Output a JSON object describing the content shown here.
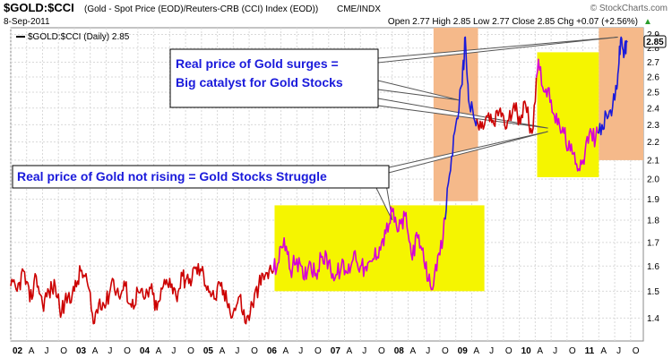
{
  "header": {
    "symbol": "$GOLD:$CCI",
    "description": "(Gold - Spot Price (EOD)/Reuters-CRB (CCI) Index (EOD))",
    "exchange": "CME/INDX",
    "brand": "© StockCharts.com",
    "date": "8-Sep-2011",
    "quote": "Open 2.77  High 2.85  Low 2.77  Close 2.85  Chg +0.07 (+2.56%)",
    "quote_arrow": "▲"
  },
  "legend": {
    "label": "$GOLD:$CCI (Daily) 2.85"
  },
  "annotations": {
    "top_box_line1": "Real price of Gold surges =",
    "top_box_line2": "Big catalyst for Gold Stocks",
    "bottom_box": "Real price of Gold not rising = Gold Stocks Struggle"
  },
  "last_value_label": "2.85",
  "colors": {
    "price_line": "#cc0000",
    "highlight_line": "#d600d6",
    "up_segment": "#1a1adb",
    "yellow_zone": "#f5f500",
    "orange_zone": "#f5b98a",
    "annotation_text": "#1a1adb",
    "grid": "#d9d9d9"
  },
  "chart_data": {
    "type": "line",
    "title": "$GOLD:$CCI",
    "series_name": "$GOLD:$CCI (Daily)",
    "ylim": [
      1.32,
      2.95
    ],
    "y_ticks": [
      "1.4",
      "1.5",
      "1.6",
      "1.7",
      "1.8",
      "1.9",
      "2.0",
      "2.1",
      "2.2",
      "2.3",
      "2.4",
      "2.5",
      "2.6",
      "2.7",
      "2.8",
      "2.9"
    ],
    "x_ticks": [
      "02",
      "A",
      "J",
      "O",
      "03",
      "A",
      "J",
      "O",
      "04",
      "A",
      "J",
      "O",
      "05",
      "A",
      "J",
      "O",
      "06",
      "A",
      "J",
      "O",
      "07",
      "A",
      "J",
      "O",
      "08",
      "A",
      "J",
      "O",
      "09",
      "A",
      "J",
      "O",
      "10",
      "A",
      "J",
      "O",
      "11",
      "A",
      "J",
      "O"
    ],
    "x_range": [
      2002.0,
      2011.95
    ],
    "grid": true,
    "log_scale": true,
    "points": [
      [
        2002.0,
        1.52
      ],
      [
        2002.1,
        1.5
      ],
      [
        2002.2,
        1.58
      ],
      [
        2002.3,
        1.46
      ],
      [
        2002.4,
        1.56
      ],
      [
        2002.5,
        1.45
      ],
      [
        2002.6,
        1.5
      ],
      [
        2002.7,
        1.52
      ],
      [
        2002.8,
        1.42
      ],
      [
        2002.9,
        1.48
      ],
      [
        2003.0,
        1.5
      ],
      [
        2003.1,
        1.58
      ],
      [
        2003.2,
        1.54
      ],
      [
        2003.3,
        1.38
      ],
      [
        2003.4,
        1.47
      ],
      [
        2003.5,
        1.45
      ],
      [
        2003.6,
        1.55
      ],
      [
        2003.7,
        1.48
      ],
      [
        2003.8,
        1.52
      ],
      [
        2003.9,
        1.44
      ],
      [
        2004.0,
        1.5
      ],
      [
        2004.1,
        1.47
      ],
      [
        2004.2,
        1.51
      ],
      [
        2004.3,
        1.43
      ],
      [
        2004.4,
        1.52
      ],
      [
        2004.5,
        1.55
      ],
      [
        2004.6,
        1.48
      ],
      [
        2004.7,
        1.56
      ],
      [
        2004.8,
        1.53
      ],
      [
        2004.9,
        1.59
      ],
      [
        2005.0,
        1.58
      ],
      [
        2005.1,
        1.52
      ],
      [
        2005.2,
        1.47
      ],
      [
        2005.3,
        1.52
      ],
      [
        2005.4,
        1.46
      ],
      [
        2005.5,
        1.42
      ],
      [
        2005.6,
        1.48
      ],
      [
        2005.7,
        1.38
      ],
      [
        2005.8,
        1.45
      ],
      [
        2005.9,
        1.52
      ],
      [
        2006.0,
        1.56
      ],
      [
        2006.1,
        1.58
      ],
      [
        2006.2,
        1.61
      ],
      [
        2006.3,
        1.72
      ],
      [
        2006.4,
        1.58
      ],
      [
        2006.5,
        1.63
      ],
      [
        2006.6,
        1.55
      ],
      [
        2006.7,
        1.62
      ],
      [
        2006.8,
        1.57
      ],
      [
        2006.9,
        1.64
      ],
      [
        2007.0,
        1.62
      ],
      [
        2007.1,
        1.55
      ],
      [
        2007.2,
        1.6
      ],
      [
        2007.3,
        1.57
      ],
      [
        2007.4,
        1.66
      ],
      [
        2007.5,
        1.6
      ],
      [
        2007.6,
        1.58
      ],
      [
        2007.7,
        1.63
      ],
      [
        2007.8,
        1.68
      ],
      [
        2007.9,
        1.74
      ],
      [
        2008.0,
        1.84
      ],
      [
        2008.1,
        1.75
      ],
      [
        2008.2,
        1.82
      ],
      [
        2008.3,
        1.65
      ],
      [
        2008.4,
        1.72
      ],
      [
        2008.5,
        1.62
      ],
      [
        2008.6,
        1.52
      ],
      [
        2008.7,
        1.58
      ],
      [
        2008.8,
        1.72
      ],
      [
        2008.9,
        2.02
      ],
      [
        2009.0,
        2.3
      ],
      [
        2009.1,
        2.55
      ],
      [
        2009.15,
        2.88
      ],
      [
        2009.2,
        2.45
      ],
      [
        2009.3,
        2.32
      ],
      [
        2009.4,
        2.28
      ],
      [
        2009.5,
        2.35
      ],
      [
        2009.6,
        2.3
      ],
      [
        2009.7,
        2.4
      ],
      [
        2009.8,
        2.28
      ],
      [
        2009.9,
        2.4
      ],
      [
        2010.0,
        2.35
      ],
      [
        2010.1,
        2.42
      ],
      [
        2010.2,
        2.25
      ],
      [
        2010.3,
        2.72
      ],
      [
        2010.4,
        2.5
      ],
      [
        2010.5,
        2.45
      ],
      [
        2010.6,
        2.3
      ],
      [
        2010.7,
        2.25
      ],
      [
        2010.8,
        2.15
      ],
      [
        2010.9,
        2.08
      ],
      [
        2011.0,
        2.1
      ],
      [
        2011.1,
        2.25
      ],
      [
        2011.2,
        2.22
      ],
      [
        2011.3,
        2.3
      ],
      [
        2011.4,
        2.35
      ],
      [
        2011.5,
        2.45
      ],
      [
        2011.55,
        2.62
      ],
      [
        2011.6,
        2.88
      ],
      [
        2011.65,
        2.75
      ],
      [
        2011.7,
        2.85
      ]
    ]
  }
}
